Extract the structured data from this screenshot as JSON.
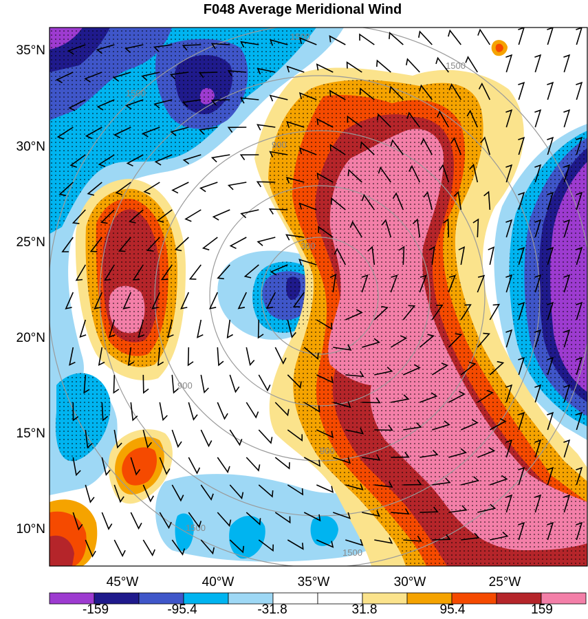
{
  "title": "F048 Average Meridional Wind",
  "map": {
    "lat_ticks": [
      "35°N",
      "30°N",
      "25°N",
      "20°N",
      "15°N",
      "10°N"
    ],
    "lon_ticks": [
      "45°W",
      "40°W",
      "35°W",
      "30°W",
      "25°W"
    ],
    "range_ring_labels": [
      "300",
      "900",
      "1500"
    ]
  },
  "colorbar": {
    "colors": [
      "#9d3bd0",
      "#1f1a8c",
      "#3f56c9",
      "#00b4f0",
      "#9ed8f5",
      "#ffffff",
      "#ffffff",
      "#fbe38c",
      "#f5a300",
      "#f54a00",
      "#b5252a",
      "#f37fa8"
    ],
    "labels": [
      "-159",
      "-95.4",
      "-31.8",
      "31.8",
      "95.4",
      "159"
    ]
  }
}
